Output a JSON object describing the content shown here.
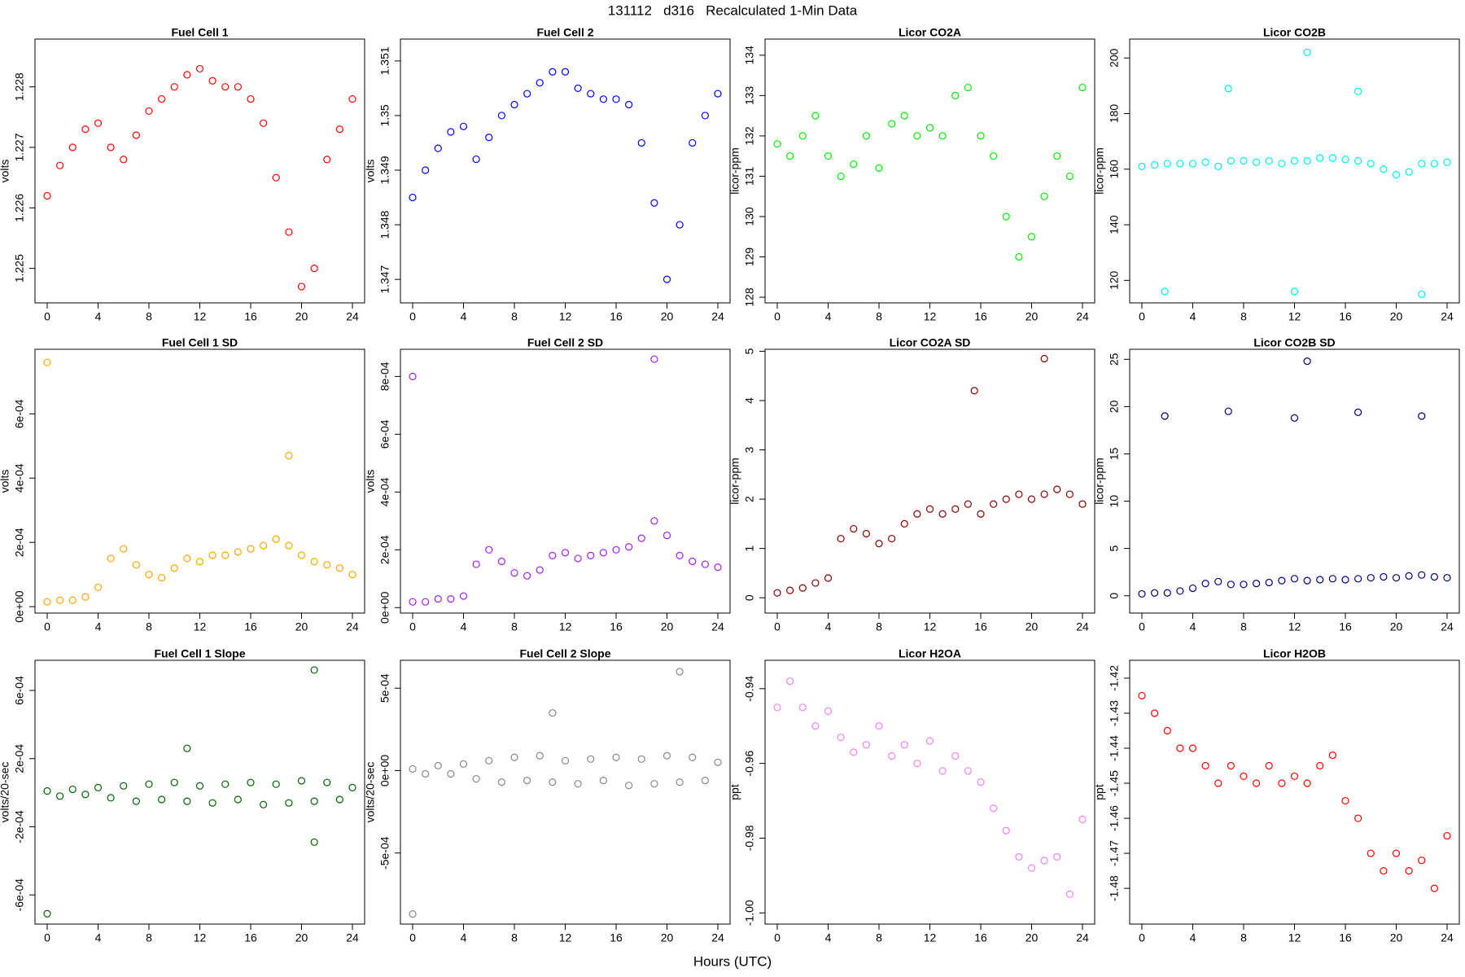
{
  "title": "131112   d316   Recalculated 1-Min Data",
  "xlabel": "Hours (UTC)",
  "chart_data": [
    {
      "type": "scatter",
      "title": "Fuel Cell 1",
      "ylabel": "volts",
      "color": "#ff0000",
      "x": [
        0,
        1,
        2,
        3,
        4,
        5,
        6,
        7,
        8,
        9,
        10,
        11,
        12,
        13,
        14,
        15,
        16,
        17,
        18,
        19,
        20,
        21,
        22,
        23,
        24
      ],
      "values": [
        1.2262,
        1.2267,
        1.227,
        1.2273,
        1.2274,
        1.227,
        1.2268,
        1.2272,
        1.2276,
        1.2278,
        1.228,
        1.2282,
        1.2283,
        1.2281,
        1.228,
        1.228,
        1.2278,
        1.2274,
        1.2265,
        1.2256,
        1.2247,
        1.225,
        1.2268,
        1.2273,
        1.2278
      ],
      "xlim": [
        -0.96,
        24.96
      ],
      "xticks": [
        0,
        4,
        8,
        12,
        16,
        20,
        24
      ],
      "ylim": [
        1.22443,
        1.22879
      ],
      "yticks": [
        1.225,
        1.226,
        1.227,
        1.228
      ]
    },
    {
      "type": "scatter",
      "title": "Fuel Cell 2",
      "ylabel": "volts",
      "color": "#0000ff",
      "x": [
        0,
        1,
        2,
        3,
        4,
        5,
        6,
        7,
        8,
        9,
        10,
        11,
        12,
        13,
        14,
        15,
        16,
        17,
        18,
        19,
        20,
        21,
        22,
        23,
        24
      ],
      "values": [
        1.3485,
        1.349,
        1.3494,
        1.3497,
        1.3498,
        1.3492,
        1.3496,
        1.35,
        1.3502,
        1.3504,
        1.3506,
        1.3508,
        1.3508,
        1.3505,
        1.3504,
        1.3503,
        1.3503,
        1.3502,
        1.3495,
        1.3484,
        1.347,
        1.348,
        1.3495,
        1.35,
        1.3504
      ],
      "xlim": [
        -0.96,
        24.96
      ],
      "xticks": [
        0,
        4,
        8,
        12,
        16,
        20,
        24
      ],
      "ylim": [
        1.34657,
        1.3514
      ],
      "yticks": [
        1.347,
        1.348,
        1.349,
        1.35,
        {
          "value": 1.351,
          "label": "1.351"
        }
      ]
    },
    {
      "type": "scatter",
      "title": "Licor CO2A",
      "ylabel": "licor-ppm",
      "color": "#00ee00",
      "x": [
        0,
        1,
        2,
        3,
        4,
        5,
        6,
        7,
        8,
        9,
        10,
        11,
        12,
        13,
        14,
        15,
        16,
        17,
        18,
        19,
        20,
        21,
        22,
        23,
        24
      ],
      "values": [
        131.8,
        131.5,
        132.0,
        132.5,
        131.5,
        131.0,
        131.3,
        132.0,
        131.2,
        132.3,
        132.5,
        132.0,
        132.2,
        132.0,
        133.0,
        133.2,
        132.0,
        131.5,
        130.0,
        129.0,
        129.5,
        130.5,
        131.5,
        131.0,
        133.2
      ],
      "xlim": [
        -0.96,
        24.96
      ],
      "xticks": [
        0,
        4,
        8,
        12,
        16,
        20,
        24
      ],
      "ylim": [
        127.86,
        134.4
      ],
      "yticks": [
        128,
        129,
        130,
        131,
        132,
        133,
        134
      ]
    },
    {
      "type": "scatter",
      "title": "Licor CO2B",
      "ylabel": "licor-ppm",
      "color": "#00eeee",
      "x": [
        0,
        1,
        2,
        3,
        4,
        5,
        6,
        7,
        8,
        9,
        10,
        11,
        12,
        13,
        14,
        15,
        16,
        17,
        18,
        19,
        20,
        21,
        22,
        23,
        24,
        1.8,
        6.8,
        12,
        13,
        17,
        22
      ],
      "values": [
        161,
        161.5,
        162,
        162,
        162,
        162.5,
        161,
        163,
        163,
        162.5,
        163,
        162,
        163,
        163,
        164,
        164,
        163.5,
        163,
        162,
        160,
        158,
        159,
        162,
        162,
        162.5,
        116,
        189,
        116,
        202,
        188,
        115
      ],
      "xlim": [
        -0.96,
        24.96
      ],
      "xticks": [
        0,
        4,
        8,
        12,
        16,
        20,
        24
      ],
      "ylim": [
        111.9,
        206.8
      ],
      "yticks": [
        120,
        140,
        160,
        180,
        200
      ]
    },
    {
      "type": "scatter",
      "title": "Fuel Cell 1 SD",
      "ylabel": "volts",
      "color": "#ffa500",
      "x": [
        0,
        1,
        2,
        3,
        4,
        5,
        6,
        7,
        8,
        9,
        10,
        11,
        12,
        13,
        14,
        15,
        16,
        17,
        18,
        19,
        20,
        21,
        22,
        23,
        24,
        0,
        19
      ],
      "values": [
        1.5e-05,
        2e-05,
        2e-05,
        3e-05,
        6e-05,
        0.00015,
        0.00018,
        0.00013,
        0.0001,
        9e-05,
        0.00012,
        0.00015,
        0.00014,
        0.00016,
        0.00016,
        0.00017,
        0.00018,
        0.00019,
        0.00021,
        0.00019,
        0.00016,
        0.00014,
        0.00013,
        0.00012,
        0.0001,
        0.00076,
        0.00047
      ],
      "xlim": [
        -0.96,
        24.96
      ],
      "xticks": [
        0,
        4,
        8,
        12,
        16,
        20,
        24
      ],
      "ylim": [
        -2e-05,
        0.000801
      ],
      "yticks": [
        {
          "value": 0,
          "label": "0e+00"
        },
        {
          "value": 0.0002,
          "label": "2e-04"
        },
        {
          "value": 0.0004,
          "label": "4e-04"
        },
        {
          "value": 0.0006,
          "label": "6e-04"
        }
      ]
    },
    {
      "type": "scatter",
      "title": "Fuel Cell 2 SD",
      "ylabel": "volts",
      "color": "#a020f0",
      "x": [
        0,
        1,
        2,
        3,
        4,
        5,
        6,
        7,
        8,
        9,
        10,
        11,
        12,
        13,
        14,
        15,
        16,
        17,
        18,
        19,
        20,
        21,
        22,
        23,
        24,
        0,
        19
      ],
      "values": [
        2e-05,
        2e-05,
        3e-05,
        3e-05,
        4e-05,
        0.00015,
        0.0002,
        0.00016,
        0.00012,
        0.00011,
        0.00013,
        0.00018,
        0.00019,
        0.00017,
        0.00018,
        0.00019,
        0.0002,
        0.00021,
        0.00024,
        0.0003,
        0.00025,
        0.00018,
        0.00016,
        0.00015,
        0.00014,
        0.0008,
        0.00086
      ],
      "xlim": [
        -0.96,
        24.96
      ],
      "xticks": [
        0,
        4,
        8,
        12,
        16,
        20,
        24
      ],
      "ylim": [
        -1.89e-05,
        0.000894
      ],
      "yticks": [
        {
          "value": 0,
          "label": "0e+00"
        },
        {
          "value": 0.0002,
          "label": "2e-04"
        },
        {
          "value": 0.0004,
          "label": "4e-04"
        },
        {
          "value": 0.0006,
          "label": "6e-04"
        },
        {
          "value": 0.0008,
          "label": "8e-04"
        }
      ]
    },
    {
      "type": "scatter",
      "title": "Licor CO2A SD",
      "ylabel": "licor-ppm",
      "color": "#8b0000",
      "x": [
        0,
        1,
        2,
        3,
        4,
        5,
        6,
        7,
        8,
        9,
        10,
        11,
        12,
        13,
        14,
        15,
        16,
        17,
        18,
        19,
        20,
        21,
        22,
        23,
        24,
        15.5,
        21
      ],
      "values": [
        0.1,
        0.15,
        0.2,
        0.3,
        0.4,
        1.2,
        1.4,
        1.3,
        1.1,
        1.2,
        1.5,
        1.7,
        1.8,
        1.7,
        1.8,
        1.9,
        1.7,
        1.9,
        2.0,
        2.1,
        2.0,
        2.1,
        2.2,
        2.1,
        1.9,
        4.2,
        4.85
      ],
      "xlim": [
        -0.96,
        24.96
      ],
      "xticks": [
        0,
        4,
        8,
        12,
        16,
        20,
        24
      ],
      "ylim": [
        -0.31,
        5.04
      ],
      "yticks": [
        0,
        1,
        2,
        3,
        4,
        5
      ]
    },
    {
      "type": "scatter",
      "title": "Licor CO2B SD",
      "ylabel": "licor-ppm",
      "color": "#000080",
      "x": [
        0,
        1,
        2,
        3,
        4,
        5,
        6,
        7,
        8,
        9,
        10,
        11,
        12,
        13,
        14,
        15,
        16,
        17,
        18,
        19,
        20,
        21,
        22,
        23,
        24,
        1.8,
        6.8,
        12,
        13,
        17,
        22
      ],
      "values": [
        0.2,
        0.3,
        0.3,
        0.5,
        0.8,
        1.3,
        1.5,
        1.2,
        1.2,
        1.3,
        1.4,
        1.6,
        1.8,
        1.6,
        1.7,
        1.8,
        1.7,
        1.8,
        1.9,
        2.0,
        1.9,
        2.1,
        2.2,
        2.0,
        1.9,
        19,
        19.5,
        18.8,
        24.8,
        19.4,
        19
      ],
      "xlim": [
        -0.96,
        24.96
      ],
      "xticks": [
        0,
        4,
        8,
        12,
        16,
        20,
        24
      ],
      "ylim": [
        -1.83,
        26.06
      ],
      "yticks": [
        0,
        5,
        10,
        15,
        20,
        25
      ]
    },
    {
      "type": "scatter",
      "title": "Fuel Cell 1 Slope",
      "ylabel": "volts/20-sec",
      "color": "#006400",
      "x": [
        0,
        1,
        2,
        3,
        4,
        5,
        6,
        7,
        8,
        9,
        10,
        11,
        12,
        13,
        14,
        15,
        16,
        17,
        18,
        19,
        20,
        21,
        22,
        23,
        24,
        0,
        11,
        21,
        21
      ],
      "values": [
        1e-05,
        -2e-05,
        2e-05,
        -1e-05,
        3e-05,
        -3e-05,
        4e-05,
        -5e-05,
        5e-05,
        -4e-05,
        6e-05,
        -5e-05,
        4e-05,
        -6e-05,
        5e-05,
        -4e-05,
        6e-05,
        -7e-05,
        5e-05,
        -6e-05,
        7e-05,
        -5e-05,
        6e-05,
        -4e-05,
        3e-05,
        -0.00071,
        0.00026,
        0.00072,
        -0.00029
      ],
      "xlim": [
        -0.96,
        24.96
      ],
      "xticks": [
        0,
        4,
        8,
        12,
        16,
        20,
        24
      ],
      "ylim": [
        -0.000771,
        0.000777
      ],
      "yticks": [
        {
          "value": -0.0006,
          "label": "-6e-04"
        },
        {
          "value": -0.0002,
          "label": "-2e-04"
        },
        {
          "value": 0.0002,
          "label": "2e-04"
        },
        {
          "value": 0.0006,
          "label": "6e-04"
        }
      ]
    },
    {
      "type": "scatter",
      "title": "Fuel Cell 2 Slope",
      "ylabel": "volts/20-sec",
      "color": "#888888",
      "x": [
        0,
        1,
        2,
        3,
        4,
        5,
        6,
        7,
        8,
        9,
        10,
        11,
        12,
        13,
        14,
        15,
        16,
        17,
        18,
        19,
        20,
        21,
        22,
        23,
        24,
        0,
        11,
        21
      ],
      "values": [
        1e-05,
        -2e-05,
        3e-05,
        -2e-05,
        4e-05,
        -5e-05,
        6e-05,
        -7e-05,
        8e-05,
        -6e-05,
        9e-05,
        -7e-05,
        6e-05,
        -8e-05,
        7e-05,
        -6e-05,
        8e-05,
        -9e-05,
        7e-05,
        -8e-05,
        9e-05,
        -7e-05,
        8e-05,
        -6e-05,
        5e-05,
        -0.00087,
        0.00035,
        0.0006
      ],
      "xlim": [
        -0.96,
        24.96
      ],
      "xticks": [
        0,
        4,
        8,
        12,
        16,
        20,
        24
      ],
      "ylim": [
        -0.000931,
        0.000669
      ],
      "yticks": [
        {
          "value": -0.0005,
          "label": "-5e-04"
        },
        {
          "value": 0,
          "label": "0e+00"
        },
        {
          "value": 0.0005,
          "label": "5e-04"
        }
      ]
    },
    {
      "type": "scatter",
      "title": "Licor H2OA",
      "ylabel": "ppt",
      "color": "#ee82ee",
      "x": [
        0,
        1,
        2,
        3,
        4,
        5,
        6,
        7,
        8,
        9,
        10,
        11,
        12,
        13,
        14,
        15,
        16,
        17,
        18,
        19,
        20,
        21,
        22,
        23,
        24
      ],
      "values": [
        -0.945,
        -0.938,
        -0.945,
        -0.95,
        -0.946,
        -0.953,
        -0.957,
        -0.955,
        -0.95,
        -0.958,
        -0.955,
        -0.96,
        -0.954,
        -0.962,
        -0.958,
        -0.962,
        -0.965,
        -0.972,
        -0.978,
        -0.985,
        -0.988,
        -0.986,
        -0.985,
        -0.995,
        -0.975
      ],
      "xlim": [
        -0.96,
        24.96
      ],
      "xticks": [
        0,
        4,
        8,
        12,
        16,
        20,
        24
      ],
      "ylim": [
        -1.003,
        -0.9324
      ],
      "yticks": [
        {
          "value": -1,
          "label": "-1.00"
        },
        -0.98,
        -0.96,
        -0.94
      ]
    },
    {
      "type": "scatter",
      "title": "Licor H2OB",
      "ylabel": "ppt",
      "color": "#ff0000",
      "x": [
        0,
        1,
        2,
        3,
        4,
        5,
        6,
        7,
        8,
        9,
        10,
        11,
        12,
        13,
        14,
        15,
        16,
        17,
        18,
        19,
        20,
        21,
        22,
        23,
        24
      ],
      "values": [
        -1.425,
        -1.43,
        -1.435,
        -1.44,
        -1.44,
        -1.445,
        -1.45,
        -1.445,
        -1.448,
        -1.45,
        -1.445,
        -1.45,
        -1.448,
        -1.45,
        -1.445,
        -1.442,
        -1.455,
        -1.46,
        -1.47,
        -1.475,
        -1.47,
        -1.475,
        -1.472,
        -1.48,
        -1.465
      ],
      "xlim": [
        -0.96,
        24.96
      ],
      "xticks": [
        0,
        4,
        8,
        12,
        16,
        20,
        24
      ],
      "ylim": [
        -1.4902,
        -1.4149
      ],
      "yticks": [
        -1.48,
        -1.47,
        -1.46,
        -1.45,
        -1.44,
        -1.43,
        -1.42
      ]
    }
  ]
}
